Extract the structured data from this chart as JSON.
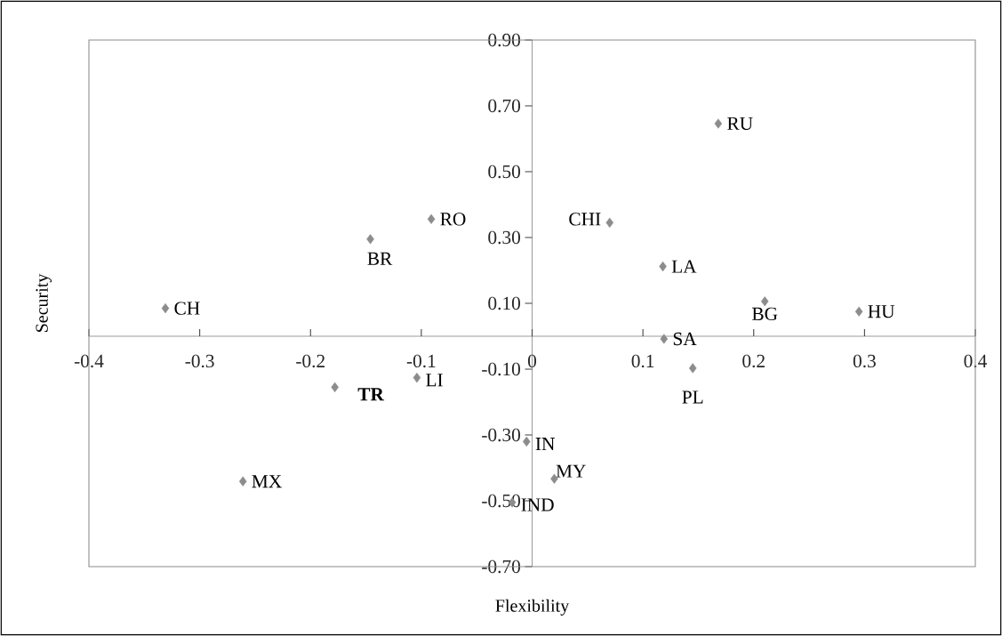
{
  "chart_data": {
    "type": "scatter",
    "xlabel": "Flexibility",
    "ylabel": "Security",
    "x": [
      -0.331,
      -0.146,
      -0.091,
      0.168,
      0.07,
      0.118,
      0.21,
      0.295,
      0.119,
      0.145,
      -0.005,
      0.02,
      -0.018,
      -0.178,
      -0.104,
      -0.261
    ],
    "values": [
      0.085,
      0.295,
      0.356,
      0.646,
      0.345,
      0.212,
      0.106,
      0.075,
      -0.008,
      -0.097,
      -0.32,
      -0.433,
      -0.505,
      -0.155,
      -0.126,
      -0.441
    ],
    "color": "#8c8c8c",
    "marker": "diamond",
    "grid": false,
    "xlim": [
      -0.4,
      0.4
    ],
    "ylim": [
      -0.7,
      0.9
    ],
    "xticks": [
      -0.4,
      -0.3,
      -0.2,
      -0.1,
      0,
      0.1,
      0.2,
      0.3,
      0.4
    ],
    "yticks": [
      {
        "value": 0.9,
        "label": "0.90"
      },
      {
        "value": 0.7,
        "label": "0.70"
      },
      {
        "value": 0.5,
        "label": "0.50"
      },
      {
        "value": 0.3,
        "label": "0.30"
      },
      {
        "value": 0.1,
        "label": "0.10"
      },
      {
        "value": -0.1,
        "label": "-0.10"
      },
      {
        "value": -0.3,
        "label": "-0.30"
      },
      {
        "value": -0.5,
        "label": "-0.50"
      },
      {
        "value": -0.7,
        "label": "-0.70"
      }
    ],
    "annotations": [
      {
        "text": "CH",
        "x": -0.331,
        "y": 0.085
      },
      {
        "text": "BR",
        "x": -0.146,
        "y": 0.295
      },
      {
        "text": "RO",
        "x": -0.091,
        "y": 0.356
      },
      {
        "text": "RU",
        "x": 0.168,
        "y": 0.646
      },
      {
        "text": "CHI",
        "x": 0.07,
        "y": 0.345
      },
      {
        "text": "LA",
        "x": 0.118,
        "y": 0.212
      },
      {
        "text": "BG",
        "x": 0.21,
        "y": 0.106
      },
      {
        "text": "HU",
        "x": 0.295,
        "y": 0.075
      },
      {
        "text": "SA",
        "x": 0.119,
        "y": -0.008
      },
      {
        "text": "PL",
        "x": 0.145,
        "y": -0.097
      },
      {
        "text": "IN",
        "x": -0.005,
        "y": -0.32
      },
      {
        "text": "MY",
        "x": 0.02,
        "y": -0.433
      },
      {
        "text": "IND",
        "x": -0.018,
        "y": -0.505
      },
      {
        "text": "**TR**",
        "x": -0.178,
        "y": -0.155
      },
      {
        "text": "LI",
        "x": -0.104,
        "y": -0.126
      },
      {
        "text": "MX",
        "x": -0.261,
        "y": -0.441
      }
    ]
  }
}
